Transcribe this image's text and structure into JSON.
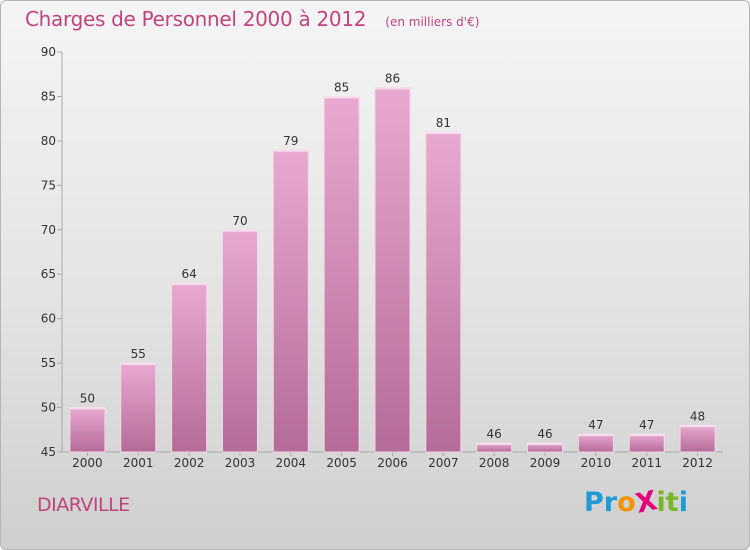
{
  "header": {
    "title": "Charges de Personnel 2000 à 2012",
    "subtitle": "(en milliers d'€)"
  },
  "footer": {
    "commune": "DIARVILLE",
    "logo_text": "Proxiti",
    "logo_letters": [
      {
        "char": "P",
        "color": "#1e9bd7"
      },
      {
        "char": "r",
        "color": "#1e9bd7"
      },
      {
        "char": "o",
        "color": "#f39200"
      },
      {
        "char": "X",
        "color": "#e2007a"
      },
      {
        "char": "i",
        "color": "#76b82a"
      },
      {
        "char": "t",
        "color": "#76b82a"
      },
      {
        "char": "i",
        "color": "#1e9bd7"
      }
    ]
  },
  "colors": {
    "title": "#c2447c",
    "bar_top": "#e8a9d0",
    "bar_bottom": "#b46b97"
  },
  "chart_data": {
    "type": "bar",
    "title": "Charges de Personnel 2000 à 2012",
    "subtitle": "(en milliers d'€)",
    "xlabel": "",
    "ylabel": "",
    "categories": [
      "2000",
      "2001",
      "2002",
      "2003",
      "2004",
      "2005",
      "2006",
      "2007",
      "2008",
      "2009",
      "2010",
      "2011",
      "2012"
    ],
    "values": [
      50,
      55,
      64,
      70,
      79,
      85,
      86,
      81,
      46,
      46,
      47,
      47,
      48
    ],
    "ylim": [
      45,
      90
    ],
    "yticks": [
      45,
      50,
      55,
      60,
      65,
      70,
      75,
      80,
      85,
      90
    ],
    "grid": false,
    "data_labels": true
  }
}
